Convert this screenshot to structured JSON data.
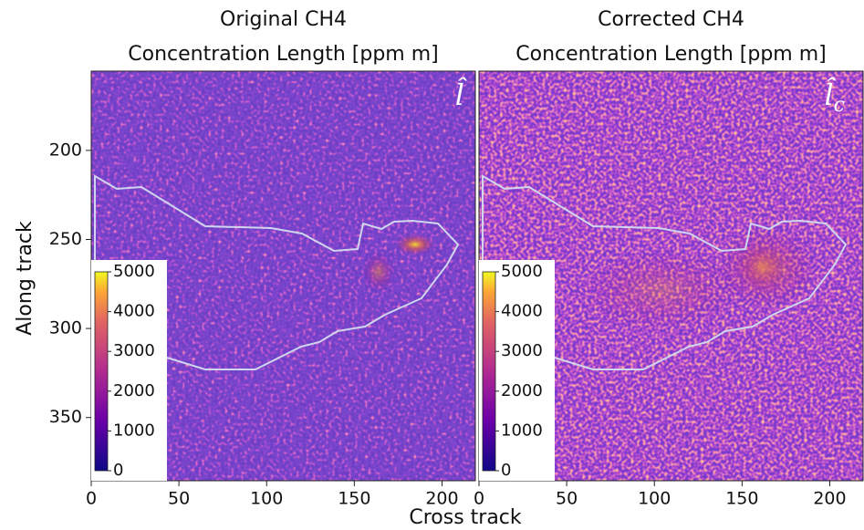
{
  "figure": {
    "xlabel": "Cross track",
    "ylabel": "Along track"
  },
  "chart_data": [
    {
      "type": "heatmap",
      "title": "Original CH4",
      "subtitle": "Concentration Length [ppm m]",
      "annotation": {
        "text": "l̂"
      },
      "xlim": [
        0,
        219
      ],
      "xticks": [
        0,
        50,
        100,
        150,
        200
      ],
      "ylim": [
        385.5,
        155.5
      ],
      "yticks": [
        200,
        250,
        300,
        350
      ],
      "colorbar": {
        "lim": [
          0,
          5000
        ],
        "ticks": [
          0,
          1000,
          2000,
          3000,
          4000,
          5000
        ]
      }
    },
    {
      "type": "heatmap",
      "title": "Corrected CH4",
      "subtitle": "Concentration Length [ppm m]",
      "annotation": {
        "text": "l̂",
        "subscript": "c"
      },
      "xlim": [
        0,
        219
      ],
      "xticks": [
        0,
        50,
        100,
        150,
        200
      ],
      "ylim": [
        385.5,
        155.5
      ],
      "colorbar": {
        "lim": [
          0,
          5000
        ],
        "ticks": [
          0,
          1000,
          2000,
          3000,
          4000,
          5000
        ]
      }
    }
  ]
}
